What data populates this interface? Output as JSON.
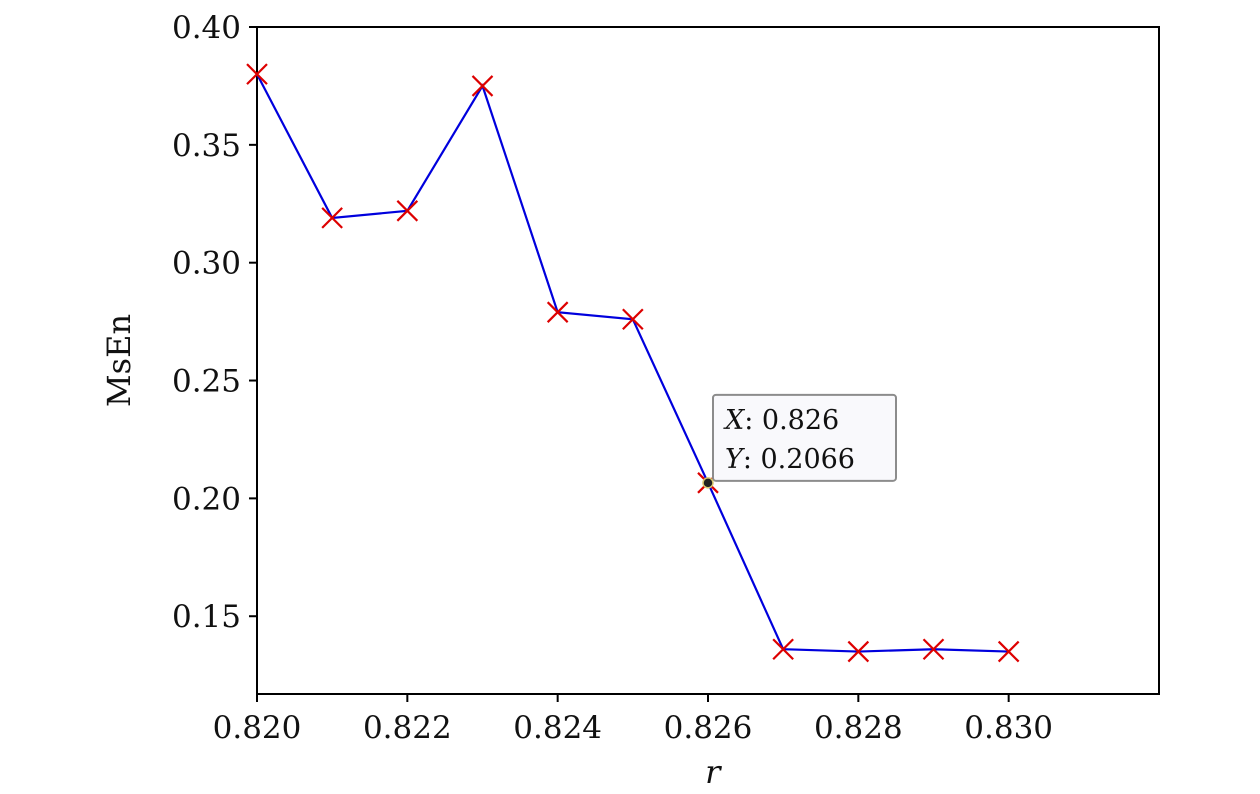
{
  "chart_data": {
    "type": "line",
    "xlabel": "r",
    "ylabel": "MsEn",
    "x": [
      0.82,
      0.821,
      0.822,
      0.823,
      0.824,
      0.825,
      0.826,
      0.827,
      0.828,
      0.829,
      0.83
    ],
    "y": [
      0.38,
      0.319,
      0.322,
      0.375,
      0.279,
      0.276,
      0.2066,
      0.136,
      0.135,
      0.136,
      0.135
    ],
    "xlim": [
      0.82,
      0.832
    ],
    "ylim": [
      0.117,
      0.4
    ],
    "x_ticks": [
      "0.820",
      "0.822",
      "0.824",
      "0.826",
      "0.828",
      "0.830"
    ],
    "x_tick_values": [
      0.82,
      0.822,
      0.824,
      0.826,
      0.828,
      0.83
    ],
    "y_ticks": [
      "0.15",
      "0.20",
      "0.25",
      "0.30",
      "0.35",
      "0.40"
    ],
    "y_tick_values": [
      0.15,
      0.2,
      0.25,
      0.3,
      0.35,
      0.4
    ],
    "grid": false,
    "line_color": "#0000dd",
    "marker_color": "#dd0000",
    "marker": "x",
    "datatip": {
      "x": 0.826,
      "y": 0.2066,
      "x_label": "X",
      "x_text": ": 0.826",
      "y_label": "Y",
      "y_text": ": 0.2066"
    }
  }
}
